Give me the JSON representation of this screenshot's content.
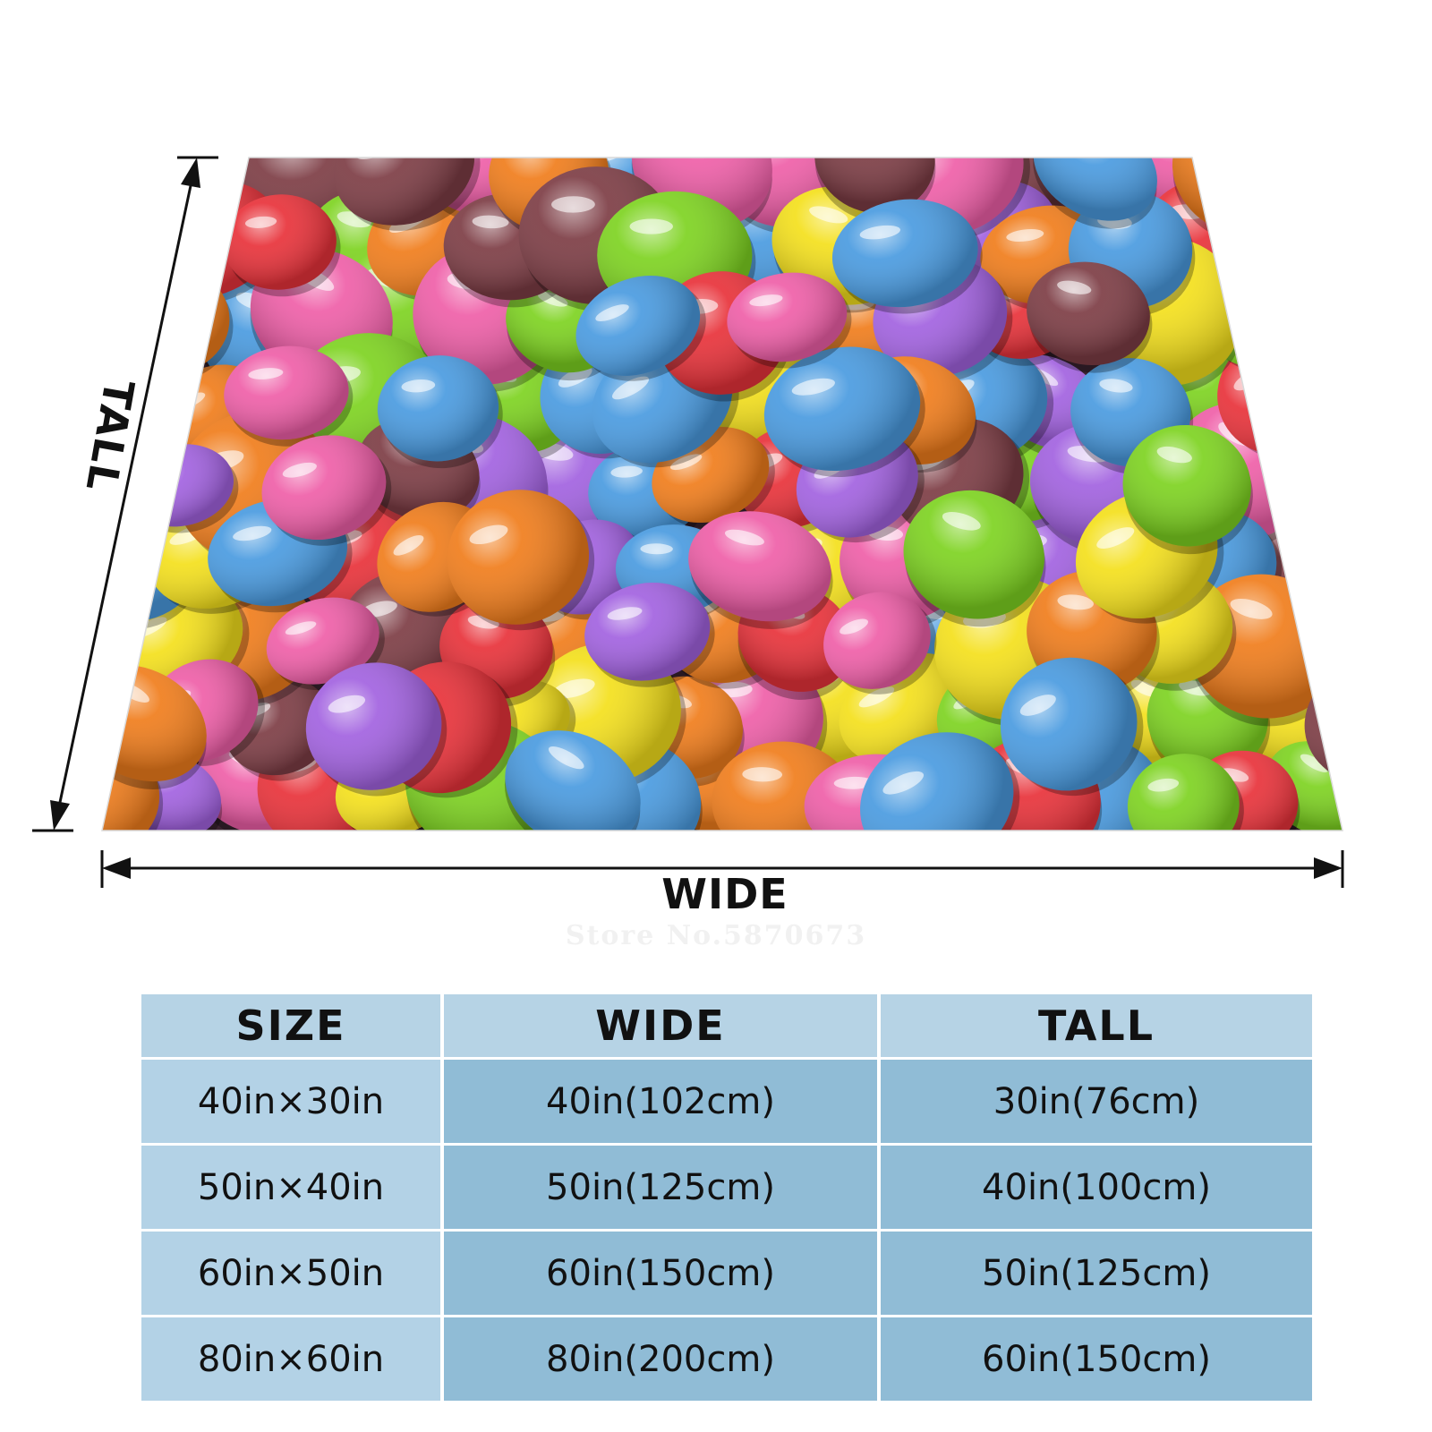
{
  "product": {
    "dimension_labels": {
      "wide": "WIDE",
      "tall": "TALL"
    },
    "watermark": "Store No.5870673",
    "candy_colors": [
      "#e8323a",
      "#f07d1c",
      "#ef5fa8",
      "#4a9be0",
      "#a262e0",
      "#7ed321",
      "#f4e01c",
      "#7d3d45"
    ]
  },
  "size_table": {
    "headers": {
      "size": "SIZE",
      "wide": "WIDE",
      "tall": "TALL"
    },
    "rows": [
      {
        "size": "40in×30in",
        "wide": "40in(102cm)",
        "tall": "30in(76cm)"
      },
      {
        "size": "50in×40in",
        "wide": "50in(125cm)",
        "tall": "40in(100cm)"
      },
      {
        "size": "60in×50in",
        "wide": "60in(150cm)",
        "tall": "50in(125cm)"
      },
      {
        "size": "80in×60in",
        "wide": "80in(200cm)",
        "tall": "60in(150cm)"
      }
    ]
  }
}
